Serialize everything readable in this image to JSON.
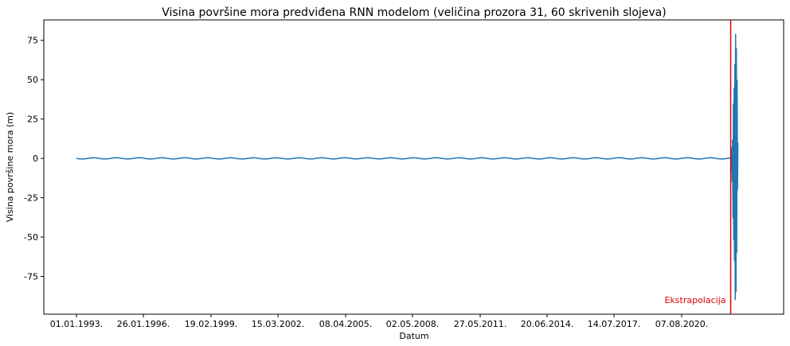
{
  "chart_data": {
    "type": "line",
    "title": "Visina površine mora predviđena RNN modelom (veličina prozora 31, 60 skrivenih slojeva)",
    "xlabel": "Datum",
    "ylabel": "Visina površine mora (m)",
    "x_ticks": [
      "01.01.1993.",
      "26.01.1996.",
      "19.02.1999.",
      "15.03.2002.",
      "08.04.2005.",
      "02.05.2008.",
      "27.05.2011.",
      "20.06.2014.",
      "14.07.2017.",
      "07.08.2020."
    ],
    "y_ticks": [
      -75,
      -50,
      -25,
      0,
      25,
      50,
      75
    ],
    "ylim": [
      -99,
      88
    ],
    "x_range": [
      "1993-01-01",
      "2024-01-01"
    ],
    "grid": false,
    "series": [
      {
        "color": "#1f77b4",
        "baseline_value": 0.0,
        "baseline_range": [
          "1993-01-01",
          "2022-11-01"
        ],
        "extrapolation_spike": {
          "x_range": [
            "2022-11-01",
            "2023-03-01"
          ],
          "values": [
            0,
            3,
            -8,
            7,
            -15,
            12,
            -38,
            35,
            -52,
            45,
            -65,
            60,
            -90,
            79,
            -85,
            70,
            -60,
            50,
            -20,
            10
          ]
        }
      }
    ],
    "annotations": [
      {
        "type": "vline",
        "x": "2022-11-01",
        "color": "#e00000",
        "label": "Ekstrapolacija"
      }
    ]
  }
}
